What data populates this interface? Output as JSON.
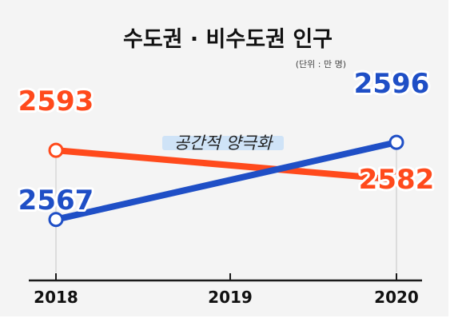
{
  "chart_data": {
    "type": "line",
    "title": "수도권 · 비수도권 인구",
    "unit_note": "(단위 : 만 명)",
    "categories": [
      "2018",
      "2019",
      "2020"
    ],
    "series": [
      {
        "values": [
          2593,
          null,
          2582
        ],
        "color": "#ff4a1c"
      },
      {
        "values": [
          2567,
          null,
          2596
        ],
        "color": "#1f4fc6"
      }
    ],
    "data_labels": [
      {
        "series": 0,
        "index": 0,
        "text": "2593"
      },
      {
        "series": 0,
        "index": 2,
        "text": "2582"
      },
      {
        "series": 1,
        "index": 0,
        "text": "2567"
      },
      {
        "series": 1,
        "index": 2,
        "text": "2596"
      }
    ],
    "annotation": {
      "text": "공간적 양극화",
      "highlight_color": "#cfe3f7"
    },
    "ylim": [
      2560,
      2600
    ],
    "grid": false,
    "legend": "none"
  },
  "colors": {
    "background": "#f4f4f4",
    "axis": "#1a1a1a",
    "label_outline": "#ffffff"
  }
}
